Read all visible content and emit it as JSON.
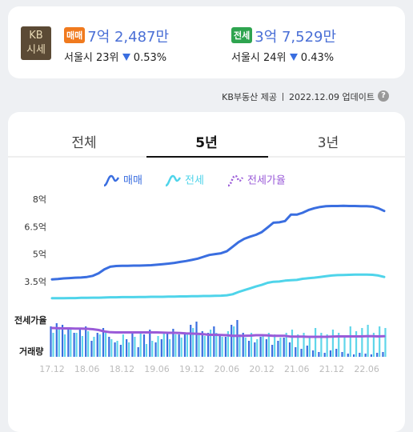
{
  "summary": {
    "badge": [
      "KB",
      "시세"
    ],
    "items": [
      {
        "tag": "매매",
        "tag_color": "#f07a1e",
        "price": "7억 2,487만",
        "rank": "서울시 23위",
        "change": "0.53%"
      },
      {
        "tag": "전세",
        "tag_color": "#2ea44f",
        "price": "3억 7,529만",
        "rank": "서울시 24위",
        "change": "0.43%"
      }
    ]
  },
  "source": {
    "provider": "KB부동산 제공",
    "updated": "2022.12.09 업데이트",
    "help": "?"
  },
  "tabs": {
    "items": [
      "전체",
      "5년",
      "3년"
    ],
    "active": 1
  },
  "chart_data": {
    "type": "line",
    "categories": [
      "17.12",
      null,
      null,
      null,
      null,
      null,
      "18.06",
      null,
      null,
      null,
      null,
      null,
      "18.12",
      null,
      null,
      null,
      null,
      null,
      "19.06",
      null,
      null,
      null,
      null,
      null,
      "19.12",
      null,
      null,
      null,
      null,
      null,
      "20.06",
      null,
      null,
      null,
      null,
      null,
      "20.12",
      null,
      null,
      null,
      null,
      null,
      "21.06",
      null,
      null,
      null,
      null,
      null,
      "21.12",
      null,
      null,
      null,
      null,
      null,
      "22.06",
      null,
      null,
      null
    ],
    "ylim": [
      2.5,
      8.5
    ],
    "yticks": [
      {
        "value": 8,
        "label": "8억"
      },
      {
        "value": 6.5,
        "label": "6.5억"
      },
      {
        "value": 5,
        "label": "5억"
      },
      {
        "value": 3.5,
        "label": "3.5억"
      }
    ],
    "y2lim": [
      0,
      100
    ],
    "series": [
      {
        "name": "매매",
        "color": "#3a6ee0",
        "values": [
          3.67,
          3.69,
          3.72,
          3.74,
          3.76,
          3.77,
          3.8,
          3.86,
          4.0,
          4.22,
          4.36,
          4.4,
          4.41,
          4.41,
          4.42,
          4.42,
          4.43,
          4.44,
          4.47,
          4.5,
          4.53,
          4.57,
          4.62,
          4.67,
          4.73,
          4.8,
          4.9,
          5.0,
          5.05,
          5.09,
          5.2,
          5.45,
          5.7,
          5.88,
          6.0,
          6.1,
          6.25,
          6.5,
          6.76,
          6.78,
          6.85,
          7.2,
          7.2,
          7.3,
          7.45,
          7.55,
          7.62,
          7.66,
          7.67,
          7.67,
          7.68,
          7.67,
          7.67,
          7.66,
          7.66,
          7.64,
          7.55,
          7.4
        ]
      },
      {
        "name": "전세",
        "color": "#4fd4ea",
        "values": [
          2.64,
          2.64,
          2.64,
          2.65,
          2.65,
          2.66,
          2.66,
          2.67,
          2.67,
          2.68,
          2.69,
          2.69,
          2.7,
          2.7,
          2.7,
          2.71,
          2.71,
          2.72,
          2.72,
          2.72,
          2.73,
          2.73,
          2.74,
          2.74,
          2.75,
          2.75,
          2.76,
          2.76,
          2.77,
          2.78,
          2.8,
          2.86,
          2.98,
          3.08,
          3.18,
          3.28,
          3.37,
          3.48,
          3.54,
          3.55,
          3.6,
          3.62,
          3.64,
          3.7,
          3.73,
          3.76,
          3.8,
          3.84,
          3.88,
          3.9,
          3.91,
          3.92,
          3.93,
          3.93,
          3.93,
          3.92,
          3.88,
          3.8
        ]
      },
      {
        "name": "전세가율",
        "color": "#9a5bd8",
        "axis": "y2",
        "values": [
          72,
          71.5,
          71,
          71,
          70.5,
          70.5,
          70,
          69,
          67,
          63.5,
          61.5,
          61,
          61,
          61,
          61,
          61,
          61,
          61,
          61,
          60.5,
          60,
          60,
          59.5,
          58.5,
          58,
          57.5,
          56.5,
          55,
          55,
          54.5,
          54,
          52.5,
          52.5,
          52.5,
          53,
          54,
          54,
          53.5,
          52.5,
          52.5,
          52.5,
          50.5,
          50.5,
          50.5,
          50,
          50,
          50,
          50,
          50.5,
          51,
          51,
          51,
          51,
          51,
          51.5,
          51.5,
          51,
          51.5
        ]
      }
    ],
    "volume": {
      "label": "거래량",
      "ylim": [
        0,
        50
      ],
      "series": [
        {
          "color": "#3a6ee0",
          "values": [
            38,
            42,
            40,
            36,
            30,
            34,
            38,
            20,
            30,
            36,
            25,
            18,
            15,
            22,
            30,
            12,
            28,
            34,
            18,
            22,
            30,
            35,
            28,
            30,
            40,
            44,
            32,
            30,
            38,
            28,
            25,
            40,
            46,
            30,
            20,
            18,
            25,
            22,
            15,
            20,
            24,
            18,
            12,
            10,
            14,
            8,
            6,
            5,
            8,
            10,
            6,
            4,
            3,
            5,
            4,
            3,
            5,
            6
          ]
        },
        {
          "color": "#5fd6ea",
          "values": [
            30,
            35,
            28,
            34,
            30,
            26,
            32,
            25,
            28,
            30,
            22,
            20,
            28,
            18,
            25,
            30,
            16,
            20,
            26,
            30,
            22,
            28,
            24,
            30,
            36,
            28,
            26,
            34,
            30,
            25,
            32,
            38,
            28,
            24,
            30,
            22,
            26,
            30,
            28,
            24,
            30,
            34,
            28,
            30,
            26,
            36,
            30,
            28,
            34,
            30,
            26,
            38,
            32,
            36,
            40,
            30,
            38,
            36
          ]
        }
      ]
    }
  }
}
